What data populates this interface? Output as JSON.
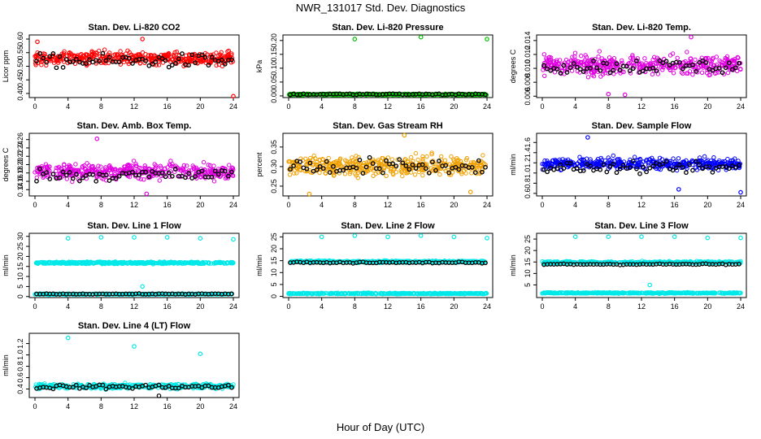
{
  "page": {
    "title": "NWR_131017  Std. Dev. Diagnostics",
    "xlabel": "Hour of Day (UTC)"
  },
  "chart_data": [
    {
      "type": "scatter",
      "title": "Stan. Dev. Li-820 CO2",
      "ylabel": "Licor ppm",
      "xlim": [
        0,
        24
      ],
      "xticks": [
        0,
        4,
        8,
        12,
        16,
        20,
        24
      ],
      "ylim": [
        0.385,
        0.615
      ],
      "yticks": [
        "0.40",
        "0.45",
        "0.50",
        "0.55",
        "0.60"
      ],
      "series": [
        {
          "color": "#ff0000",
          "style": "band",
          "base": 0.53,
          "spread": 0.028,
          "outliers": [
            [
              24,
              0.39
            ],
            [
              0.3,
              0.59
            ],
            [
              13,
              0.6
            ]
          ]
        },
        {
          "color": "#000000",
          "style": "band",
          "base": 0.52,
          "spread": 0.03,
          "outliers": []
        }
      ]
    },
    {
      "type": "scatter",
      "title": "Stan. Dev. Li-820 Pressure",
      "ylabel": "kPa",
      "xlim": [
        0,
        24
      ],
      "xticks": [
        0,
        4,
        8,
        12,
        16,
        20,
        24
      ],
      "ylim": [
        -0.006,
        0.22
      ],
      "yticks": [
        "0.00",
        "0.05",
        "0.10",
        "0.15",
        "0.20"
      ],
      "series": [
        {
          "color": "#00c000",
          "style": "band",
          "base": 0.005,
          "spread": 0.003,
          "outliers": [
            [
              8,
              0.205
            ],
            [
              16,
              0.212
            ],
            [
              24,
              0.205
            ]
          ]
        },
        {
          "color": "#000000",
          "style": "band",
          "base": 0.006,
          "spread": 0.003,
          "outliers": []
        }
      ]
    },
    {
      "type": "scatter",
      "title": "Stan. Dev. Li-820 Temp.",
      "ylabel": "degrees C",
      "xlim": [
        0,
        24
      ],
      "xticks": [
        0,
        4,
        8,
        12,
        16,
        20,
        24
      ],
      "ylim": [
        0.0058,
        0.0148
      ],
      "yticks": [
        "0.006",
        "0.008",
        "0.010",
        "0.012",
        "0.014"
      ],
      "series": [
        {
          "color": "#e000e0",
          "style": "band",
          "base": 0.0105,
          "spread": 0.0016,
          "outliers": [
            [
              18,
              0.0145
            ],
            [
              8,
              0.0063
            ],
            [
              10,
              0.0062
            ]
          ]
        },
        {
          "color": "#000000",
          "style": "band",
          "base": 0.0103,
          "spread": 0.0013,
          "outliers": []
        }
      ]
    },
    {
      "type": "scatter",
      "title": "Stan. Dev. Amb. Box Temp.",
      "ylabel": "degrees C",
      "xlim": [
        0,
        24
      ],
      "xticks": [
        0,
        4,
        8,
        12,
        16,
        20,
        24
      ],
      "ylim": [
        0.125,
        0.275
      ],
      "yticks": [
        "0.14",
        "0.16",
        "0.18",
        "0.20",
        "0.22",
        "0.24",
        "0.26"
      ],
      "series": [
        {
          "color": "#e000e0",
          "style": "band",
          "base": 0.183,
          "spread": 0.022,
          "outliers": [
            [
              7.5,
              0.262
            ],
            [
              13.5,
              0.13
            ]
          ]
        },
        {
          "color": "#000000",
          "style": "band",
          "base": 0.175,
          "spread": 0.018,
          "outliers": []
        }
      ]
    },
    {
      "type": "scatter",
      "title": "Stan. Dev. Gas Stream RH",
      "ylabel": "percent",
      "xlim": [
        0,
        24
      ],
      "xticks": [
        0,
        4,
        8,
        12,
        16,
        20,
        24
      ],
      "ylim": [
        0.225,
        0.385
      ],
      "yticks": [
        "0.25",
        "0.30",
        "0.35"
      ],
      "series": [
        {
          "color": "#f0a000",
          "style": "band",
          "base": 0.302,
          "spread": 0.028,
          "outliers": [
            [
              14,
              0.38
            ],
            [
              2.5,
              0.23
            ],
            [
              22,
              0.235
            ]
          ]
        },
        {
          "color": "#000000",
          "style": "band",
          "base": 0.3,
          "spread": 0.025,
          "outliers": []
        }
      ]
    },
    {
      "type": "scatter",
      "title": "Stan. Dev. Sample Flow",
      "ylabel": "ml/min",
      "xlim": [
        0,
        24
      ],
      "xticks": [
        0,
        4,
        8,
        12,
        16,
        20,
        24
      ],
      "ylim": [
        0.55,
        1.78
      ],
      "yticks": [
        "0.6",
        "0.8",
        "1.0",
        "1.2",
        "1.4",
        "1.6"
      ],
      "series": [
        {
          "color": "#0000ff",
          "style": "band",
          "base": 1.18,
          "spread": 0.13,
          "outliers": [
            [
              5.5,
              1.7
            ],
            [
              24,
              0.62
            ],
            [
              16.5,
              0.68
            ]
          ]
        },
        {
          "color": "#000000",
          "style": "band",
          "base": 1.1,
          "spread": 0.12,
          "outliers": []
        }
      ]
    },
    {
      "type": "scatter",
      "title": "Stan. Dev. Line 1 Flow",
      "ylabel": "ml/min",
      "xlim": [
        0,
        24
      ],
      "xticks": [
        0,
        4,
        8,
        12,
        16,
        20,
        24
      ],
      "ylim": [
        -0.5,
        31.5
      ],
      "yticks": [
        "0",
        "5",
        "10",
        "15",
        "20",
        "25",
        "30"
      ],
      "series": [
        {
          "color": "#00e8e8",
          "style": "band",
          "base": 16.8,
          "spread": 0.6,
          "outliers": [
            [
              4,
              29
            ],
            [
              8,
              29.5
            ],
            [
              12,
              29.5
            ],
            [
              16,
              29.5
            ],
            [
              20,
              29
            ],
            [
              24,
              28.5
            ],
            [
              13,
              5
            ]
          ]
        },
        {
          "color": "#00e8e8",
          "style": "band",
          "base": 1.2,
          "spread": 0.3,
          "outliers": []
        },
        {
          "color": "#000000",
          "style": "band",
          "base": 1.3,
          "spread": 0.2,
          "outliers": []
        }
      ]
    },
    {
      "type": "scatter",
      "title": "Stan. Dev. Line 2 Flow",
      "ylabel": "ml/min",
      "xlim": [
        0,
        24
      ],
      "xticks": [
        0,
        4,
        8,
        12,
        16,
        20,
        24
      ],
      "ylim": [
        -0.5,
        26.5
      ],
      "yticks": [
        "0",
        "5",
        "10",
        "15",
        "20",
        "25"
      ],
      "series": [
        {
          "color": "#00e8e8",
          "style": "band",
          "base": 14.6,
          "spread": 0.5,
          "outliers": [
            [
              4,
              25
            ],
            [
              8,
              25.5
            ],
            [
              12,
              25
            ],
            [
              16,
              25.5
            ],
            [
              20,
              25
            ],
            [
              24,
              24.5
            ]
          ]
        },
        {
          "color": "#00e8e8",
          "style": "band",
          "base": 1.2,
          "spread": 0.3,
          "outliers": []
        },
        {
          "color": "#000000",
          "style": "band",
          "base": 14.2,
          "spread": 0.3,
          "outliers": []
        }
      ]
    },
    {
      "type": "scatter",
      "title": "Stan. Dev. Line 3 Flow",
      "ylabel": "ml/min",
      "xlim": [
        0,
        24
      ],
      "xticks": [
        0,
        4,
        8,
        12,
        16,
        20,
        24
      ],
      "ylim": [
        -0.5,
        27.5
      ],
      "yticks": [
        "5",
        "10",
        "15",
        "20",
        "25"
      ],
      "series": [
        {
          "color": "#00e8e8",
          "style": "band",
          "base": 14.8,
          "spread": 0.6,
          "outliers": [
            [
              4,
              26
            ],
            [
              8,
              26
            ],
            [
              12,
              26
            ],
            [
              16,
              26
            ],
            [
              20,
              25.5
            ],
            [
              24,
              25.5
            ],
            [
              13,
              5
            ]
          ]
        },
        {
          "color": "#00e8e8",
          "style": "band",
          "base": 1.5,
          "spread": 0.3,
          "outliers": []
        },
        {
          "color": "#000000",
          "style": "band",
          "base": 14.0,
          "spread": 0.3,
          "outliers": []
        }
      ]
    },
    {
      "type": "scatter",
      "title": "Stan. Dev. Line 4 (LT) Flow",
      "ylabel": "ml/min",
      "xlim": [
        0,
        24
      ],
      "xticks": [
        0,
        4,
        8,
        12,
        16,
        20,
        24
      ],
      "ylim": [
        0.25,
        1.38
      ],
      "yticks": [
        "0.4",
        "0.6",
        "0.8",
        "1.0",
        "1.2"
      ],
      "series": [
        {
          "color": "#00e8e8",
          "style": "band",
          "base": 0.45,
          "spread": 0.05,
          "outliers": [
            [
              4,
              1.3
            ],
            [
              12,
              1.15
            ],
            [
              20,
              1.02
            ]
          ]
        },
        {
          "color": "#000000",
          "style": "band",
          "base": 0.44,
          "spread": 0.045,
          "outliers": [
            [
              15,
              0.28
            ]
          ]
        }
      ]
    }
  ]
}
